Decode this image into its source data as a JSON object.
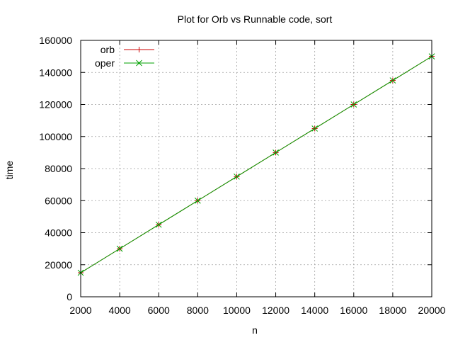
{
  "chart_data": {
    "type": "line",
    "title": "Plot for Orb vs Runnable code, sort",
    "xlabel": "n",
    "ylabel": "time",
    "xlim": [
      2000,
      20000
    ],
    "ylim": [
      0,
      160000
    ],
    "x_ticks": [
      2000,
      4000,
      6000,
      8000,
      10000,
      12000,
      14000,
      16000,
      18000,
      20000
    ],
    "y_ticks": [
      0,
      20000,
      40000,
      60000,
      80000,
      100000,
      120000,
      140000,
      160000
    ],
    "grid": true,
    "legend_position": "top-left",
    "x": [
      2000,
      4000,
      6000,
      8000,
      10000,
      12000,
      14000,
      16000,
      18000,
      20000
    ],
    "series": [
      {
        "name": "orb",
        "color": "#cc0000",
        "marker": "plus",
        "values": [
          15000,
          30000,
          45000,
          60000,
          75000,
          90000,
          105000,
          120000,
          135000,
          150000
        ]
      },
      {
        "name": "oper",
        "color": "#00a000",
        "marker": "cross",
        "values": [
          15000,
          30000,
          45000,
          60000,
          75000,
          90000,
          105000,
          120000,
          135000,
          150000
        ]
      }
    ]
  }
}
